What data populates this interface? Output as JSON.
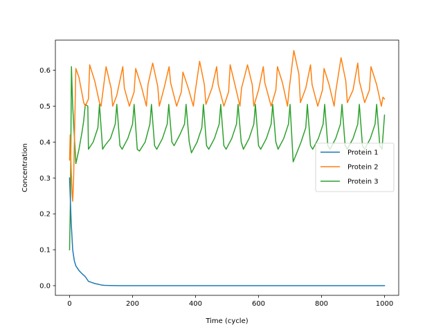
{
  "chart_data": {
    "type": "line",
    "title": "",
    "xlabel": "Time (cycle)",
    "ylabel": "Concentration",
    "xlim": [
      -45,
      1045
    ],
    "ylim": [
      -0.027,
      0.684
    ],
    "xticks": [
      0,
      200,
      400,
      600,
      800,
      1000
    ],
    "xtick_labels": [
      "0",
      "200",
      "400",
      "600",
      "800",
      "1000"
    ],
    "yticks": [
      0.0,
      0.1,
      0.2,
      0.3,
      0.4,
      0.5,
      0.6
    ],
    "ytick_labels": [
      "0.0",
      "0.1",
      "0.2",
      "0.3",
      "0.4",
      "0.5",
      "0.6"
    ],
    "grid": false,
    "legend_position": "center-right",
    "series": [
      {
        "name": "Protein 1",
        "color": "#1f77b4",
        "x": [
          0,
          5,
          10,
          15,
          20,
          30,
          40,
          50,
          60,
          70,
          80,
          90,
          100,
          110,
          120,
          140,
          160,
          200,
          300,
          400,
          500,
          600,
          700,
          800,
          900,
          1000
        ],
        "y": [
          0.3,
          0.18,
          0.1,
          0.07,
          0.055,
          0.042,
          0.033,
          0.025,
          0.012,
          0.009,
          0.006,
          0.004,
          0.002,
          0.001,
          0.0006,
          0.0002,
          0.0,
          0.0,
          0.0,
          0.0,
          0.0,
          0.0,
          0.0,
          0.0,
          0.0,
          0.0
        ]
      },
      {
        "name": "Protein 2",
        "color": "#ff7f0e",
        "x": [
          0,
          2,
          5,
          8,
          10,
          13,
          20,
          30,
          45,
          50,
          60,
          64,
          80,
          95,
          100,
          116,
          132,
          137,
          150,
          169,
          174,
          190,
          205,
          210,
          228,
          244,
          249,
          264,
          280,
          285,
          300,
          316,
          321,
          340,
          355,
          360,
          377,
          393,
          398,
          413,
          428,
          433,
          452,
          467,
          472,
          490,
          505,
          510,
          525,
          541,
          546,
          565,
          580,
          585,
          600,
          615,
          620,
          640,
          655,
          660,
          676,
          692,
          697,
          712,
          728,
          733,
          750,
          765,
          770,
          788,
          803,
          808,
          824,
          840,
          845,
          862,
          877,
          882,
          900,
          915,
          920,
          937,
          952,
          957,
          975,
          990,
          995,
          1000
        ],
        "y": [
          0.35,
          0.42,
          0.33,
          0.26,
          0.235,
          0.3,
          0.605,
          0.58,
          0.51,
          0.5,
          0.52,
          0.615,
          0.57,
          0.51,
          0.5,
          0.61,
          0.55,
          0.5,
          0.53,
          0.61,
          0.55,
          0.5,
          0.54,
          0.605,
          0.555,
          0.5,
          0.56,
          0.62,
          0.555,
          0.5,
          0.55,
          0.61,
          0.565,
          0.5,
          0.54,
          0.595,
          0.55,
          0.5,
          0.535,
          0.625,
          0.56,
          0.505,
          0.55,
          0.61,
          0.56,
          0.5,
          0.54,
          0.615,
          0.56,
          0.5,
          0.55,
          0.615,
          0.56,
          0.5,
          0.545,
          0.61,
          0.565,
          0.5,
          0.545,
          0.61,
          0.565,
          0.5,
          0.545,
          0.655,
          0.59,
          0.51,
          0.55,
          0.615,
          0.56,
          0.5,
          0.545,
          0.605,
          0.56,
          0.5,
          0.54,
          0.635,
          0.57,
          0.51,
          0.545,
          0.62,
          0.57,
          0.51,
          0.545,
          0.61,
          0.56,
          0.5,
          0.525,
          0.52
        ]
      },
      {
        "name": "Protein 3",
        "color": "#2ca02c",
        "x": [
          0,
          3,
          6,
          10,
          15,
          20,
          30,
          40,
          45,
          50,
          58,
          60,
          75,
          90,
          95,
          105,
          112,
          130,
          145,
          150,
          160,
          167,
          185,
          200,
          205,
          215,
          222,
          240,
          255,
          260,
          270,
          277,
          295,
          310,
          315,
          325,
          332,
          350,
          365,
          370,
          380,
          387,
          405,
          420,
          425,
          435,
          442,
          460,
          475,
          480,
          490,
          497,
          515,
          530,
          535,
          545,
          552,
          570,
          585,
          590,
          600,
          607,
          625,
          640,
          645,
          655,
          662,
          680,
          695,
          700,
          710,
          717,
          735,
          750,
          755,
          765,
          772,
          790,
          805,
          810,
          820,
          827,
          845,
          860,
          865,
          875,
          882,
          900,
          915,
          920,
          930,
          937,
          955,
          970,
          975,
          985,
          992,
          1000
        ],
        "y": [
          0.1,
          0.25,
          0.61,
          0.5,
          0.42,
          0.34,
          0.38,
          0.43,
          0.46,
          0.505,
          0.5,
          0.38,
          0.4,
          0.44,
          0.505,
          0.38,
          0.39,
          0.41,
          0.45,
          0.505,
          0.39,
          0.38,
          0.41,
          0.45,
          0.505,
          0.38,
          0.375,
          0.4,
          0.45,
          0.505,
          0.39,
          0.38,
          0.41,
          0.45,
          0.505,
          0.4,
          0.39,
          0.42,
          0.45,
          0.505,
          0.4,
          0.37,
          0.4,
          0.44,
          0.505,
          0.39,
          0.38,
          0.41,
          0.45,
          0.505,
          0.39,
          0.38,
          0.41,
          0.45,
          0.505,
          0.4,
          0.38,
          0.41,
          0.45,
          0.505,
          0.39,
          0.38,
          0.41,
          0.45,
          0.505,
          0.4,
          0.38,
          0.41,
          0.45,
          0.505,
          0.345,
          0.36,
          0.4,
          0.44,
          0.505,
          0.39,
          0.38,
          0.41,
          0.45,
          0.505,
          0.39,
          0.38,
          0.41,
          0.45,
          0.505,
          0.39,
          0.38,
          0.41,
          0.45,
          0.505,
          0.39,
          0.38,
          0.41,
          0.45,
          0.505,
          0.39,
          0.38,
          0.475
        ]
      }
    ]
  }
}
